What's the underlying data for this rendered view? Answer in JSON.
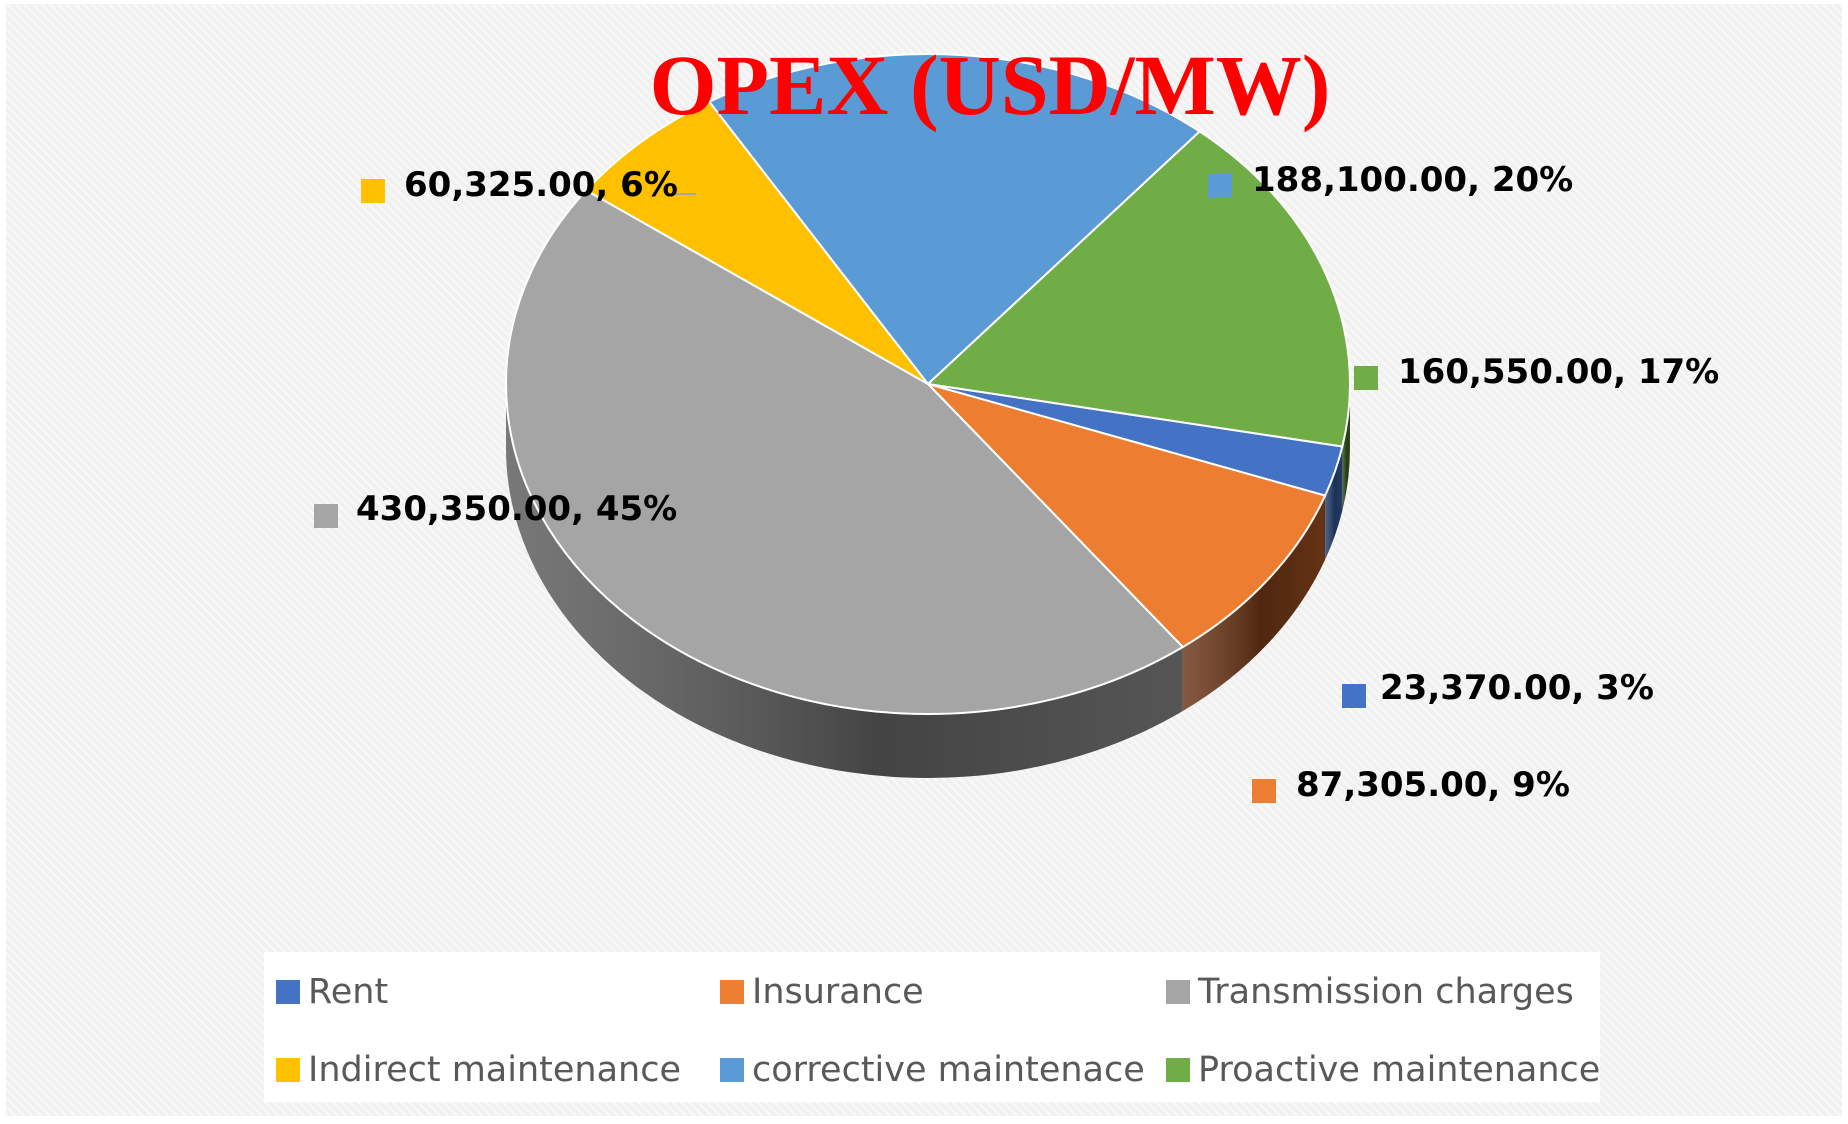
{
  "chart_data": {
    "type": "pie",
    "title": "OPEX (USD/MW)",
    "slices": [
      {
        "label": "Rent",
        "value": 23370.0,
        "value_label": "23,370.00",
        "percent": "3%",
        "color": "#4472c4",
        "dark_color": "#24406f"
      },
      {
        "label": "Insurance",
        "value": 87305.0,
        "value_label": "87,305.00",
        "percent": "9%",
        "color": "#ed7d31",
        "dark_color": "#6a3515"
      },
      {
        "label": "Transmission charges",
        "value": 430350.0,
        "value_label": "430,350.00",
        "percent": "45%",
        "color": "#a5a5a5",
        "dark_color": "#5a5a5a"
      },
      {
        "label": "Indirect maintenance",
        "value": 60325.0,
        "value_label": "60,325.00",
        "percent": "6%",
        "color": "#ffc000",
        "dark_color": "#8a6800"
      },
      {
        "label": "corrective maintenace",
        "value": 188100.0,
        "value_label": "188,100.00",
        "percent": "20%",
        "color": "#5b9bd5",
        "dark_color": "#2e5478"
      },
      {
        "label": "Proactive maintenance",
        "value": 160550.0,
        "value_label": "160,550.00",
        "percent": "17%",
        "color": "#70ad47",
        "dark_color": "#2f4d1c"
      }
    ],
    "legend_position": "bottom",
    "data_labels": "value, percent"
  },
  "colors": {
    "title": "#ff0000",
    "data_label_text": "#000000",
    "legend_text": "#595959"
  }
}
